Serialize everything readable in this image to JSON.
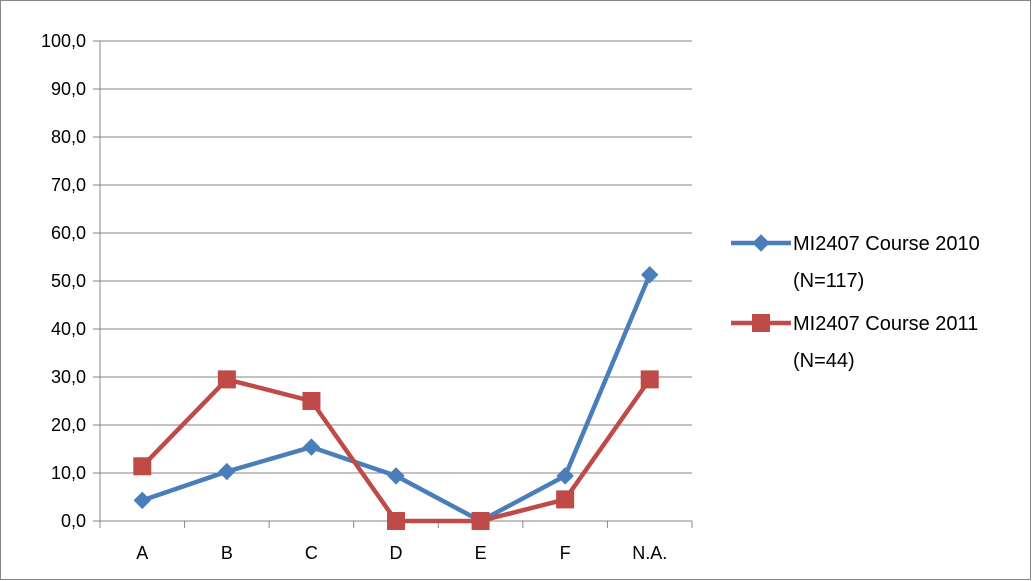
{
  "chart_data": {
    "type": "line",
    "categories": [
      "A",
      "B",
      "C",
      "D",
      "E",
      "F",
      "N.A."
    ],
    "ylim": [
      0,
      100
    ],
    "ytick_labels": [
      "0,0",
      "10,0",
      "20,0",
      "30,0",
      "40,0",
      "50,0",
      "60,0",
      "70,0",
      "80,0",
      "90,0",
      "100,0"
    ],
    "grid": true,
    "legend_position": "right",
    "series": [
      {
        "name_line1": "MI2407 Course 2010",
        "name_line2": "(N=117)",
        "marker": "diamond",
        "color": "#4a7ebb",
        "values": [
          4.3,
          10.3,
          15.4,
          9.4,
          0.0,
          9.4,
          51.3
        ]
      },
      {
        "name_line1": "MI2407 Course 2011",
        "name_line2": "(N=44)",
        "marker": "square",
        "color": "#be4b48",
        "values": [
          11.4,
          29.5,
          25.0,
          0.0,
          0.0,
          4.5,
          29.5
        ]
      }
    ]
  }
}
